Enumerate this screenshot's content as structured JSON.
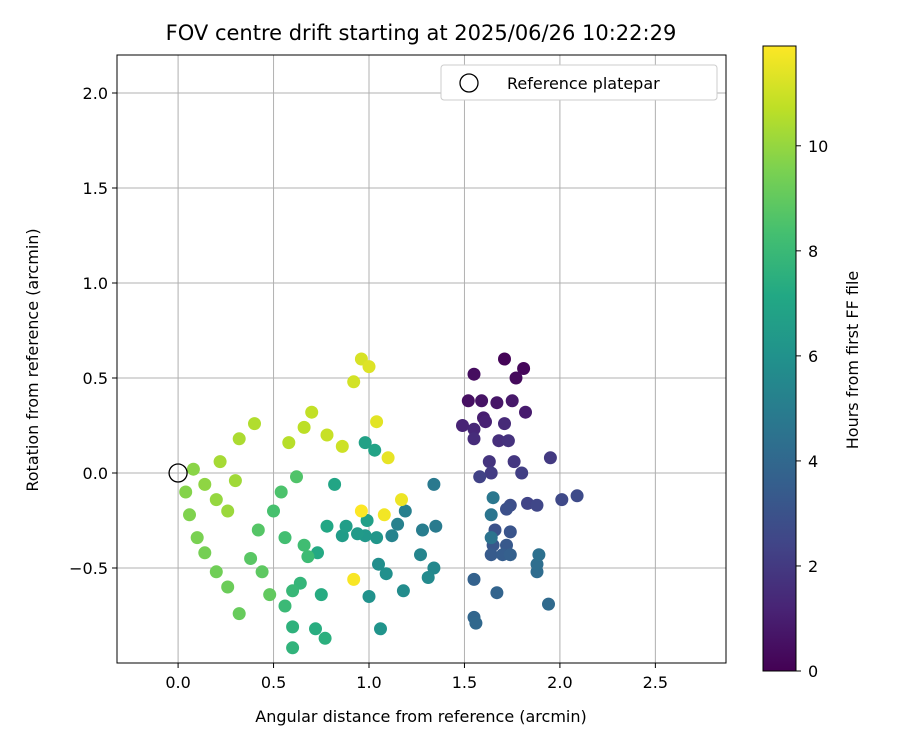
{
  "chart_data": {
    "type": "scatter",
    "title": "FOV centre drift starting at 2025/06/26 10:22:29",
    "xlabel": "Angular distance from reference (arcmin)",
    "ylabel": "Rotation from reference (arcmin)",
    "xlim": [
      -0.32,
      2.87
    ],
    "ylim": [
      -1.0,
      2.2
    ],
    "xticks": [
      0.0,
      0.5,
      1.0,
      1.5,
      2.0,
      2.5
    ],
    "xtick_labels": [
      "0.0",
      "0.5",
      "1.0",
      "1.5",
      "2.0",
      "2.5"
    ],
    "yticks": [
      -0.5,
      0.0,
      0.5,
      1.0,
      1.5,
      2.0
    ],
    "ytick_labels": [
      "−0.5",
      "0.0",
      "0.5",
      "1.0",
      "1.5",
      "2.0"
    ],
    "grid": true,
    "legend": {
      "position": "top-right",
      "entries": [
        "Reference platepar"
      ]
    },
    "reference_point": {
      "x": 0.0,
      "y": 0.0,
      "label": "Reference platepar"
    },
    "colorbar": {
      "label": "Hours from first FF file",
      "colormap": "viridis",
      "range": [
        0,
        11.9
      ],
      "ticks": [
        0,
        2,
        4,
        6,
        8,
        10
      ],
      "tick_labels": [
        "0",
        "2",
        "4",
        "6",
        "8",
        "10"
      ]
    },
    "points": [
      {
        "x": 1.71,
        "y": 0.6,
        "h": 0.1
      },
      {
        "x": 1.81,
        "y": 0.55,
        "h": 0.2
      },
      {
        "x": 1.77,
        "y": 0.5,
        "h": 0.3
      },
      {
        "x": 1.55,
        "y": 0.52,
        "h": 0.4
      },
      {
        "x": 1.52,
        "y": 0.38,
        "h": 0.5
      },
      {
        "x": 1.59,
        "y": 0.38,
        "h": 0.6
      },
      {
        "x": 1.67,
        "y": 0.37,
        "h": 0.7
      },
      {
        "x": 1.75,
        "y": 0.38,
        "h": 0.8
      },
      {
        "x": 1.82,
        "y": 0.32,
        "h": 0.9
      },
      {
        "x": 1.6,
        "y": 0.29,
        "h": 1.0
      },
      {
        "x": 1.61,
        "y": 0.27,
        "h": 1.1
      },
      {
        "x": 1.49,
        "y": 0.25,
        "h": 1.2
      },
      {
        "x": 1.55,
        "y": 0.23,
        "h": 1.3
      },
      {
        "x": 1.71,
        "y": 0.26,
        "h": 1.4
      },
      {
        "x": 1.55,
        "y": 0.18,
        "h": 1.5
      },
      {
        "x": 1.68,
        "y": 0.17,
        "h": 1.6
      },
      {
        "x": 1.73,
        "y": 0.17,
        "h": 1.7
      },
      {
        "x": 1.63,
        "y": 0.06,
        "h": 1.8
      },
      {
        "x": 1.76,
        "y": 0.06,
        "h": 1.9
      },
      {
        "x": 1.95,
        "y": 0.08,
        "h": 2.0
      },
      {
        "x": 1.64,
        "y": 0.0,
        "h": 2.1
      },
      {
        "x": 1.8,
        "y": 0.0,
        "h": 2.2
      },
      {
        "x": 1.58,
        "y": -0.02,
        "h": 2.3
      },
      {
        "x": 1.83,
        "y": -0.16,
        "h": 2.4
      },
      {
        "x": 1.88,
        "y": -0.17,
        "h": 2.5
      },
      {
        "x": 2.01,
        "y": -0.14,
        "h": 2.6
      },
      {
        "x": 2.09,
        "y": -0.12,
        "h": 2.7
      },
      {
        "x": 1.74,
        "y": -0.17,
        "h": 2.8
      },
      {
        "x": 1.72,
        "y": -0.19,
        "h": 2.9
      },
      {
        "x": 1.66,
        "y": -0.3,
        "h": 3.0
      },
      {
        "x": 1.74,
        "y": -0.31,
        "h": 3.1
      },
      {
        "x": 1.65,
        "y": -0.38,
        "h": 3.2
      },
      {
        "x": 1.72,
        "y": -0.38,
        "h": 3.3
      },
      {
        "x": 1.64,
        "y": -0.43,
        "h": 3.4
      },
      {
        "x": 1.7,
        "y": -0.43,
        "h": 3.5
      },
      {
        "x": 1.74,
        "y": -0.43,
        "h": 3.6
      },
      {
        "x": 1.55,
        "y": -0.56,
        "h": 3.7
      },
      {
        "x": 1.67,
        "y": -0.63,
        "h": 3.8
      },
      {
        "x": 1.55,
        "y": -0.76,
        "h": 3.9
      },
      {
        "x": 1.56,
        "y": -0.79,
        "h": 4.0
      },
      {
        "x": 1.94,
        "y": -0.69,
        "h": 4.1
      },
      {
        "x": 1.88,
        "y": -0.52,
        "h": 4.2
      },
      {
        "x": 1.88,
        "y": -0.48,
        "h": 4.3
      },
      {
        "x": 1.89,
        "y": -0.43,
        "h": 4.4
      },
      {
        "x": 1.64,
        "y": -0.34,
        "h": 4.5
      },
      {
        "x": 1.64,
        "y": -0.22,
        "h": 4.6
      },
      {
        "x": 1.65,
        "y": -0.13,
        "h": 4.7
      },
      {
        "x": 1.34,
        "y": -0.06,
        "h": 4.8
      },
      {
        "x": 1.35,
        "y": -0.28,
        "h": 4.9
      },
      {
        "x": 1.28,
        "y": -0.3,
        "h": 5.0
      },
      {
        "x": 1.19,
        "y": -0.2,
        "h": 5.1
      },
      {
        "x": 1.15,
        "y": -0.27,
        "h": 5.2
      },
      {
        "x": 1.12,
        "y": -0.33,
        "h": 5.3
      },
      {
        "x": 1.27,
        "y": -0.43,
        "h": 5.4
      },
      {
        "x": 1.34,
        "y": -0.5,
        "h": 5.5
      },
      {
        "x": 1.31,
        "y": -0.55,
        "h": 5.6
      },
      {
        "x": 1.18,
        "y": -0.62,
        "h": 5.7
      },
      {
        "x": 1.05,
        "y": -0.48,
        "h": 5.8
      },
      {
        "x": 1.09,
        "y": -0.53,
        "h": 5.9
      },
      {
        "x": 1.0,
        "y": -0.65,
        "h": 6.0
      },
      {
        "x": 1.06,
        "y": -0.82,
        "h": 6.1
      },
      {
        "x": 1.04,
        "y": -0.34,
        "h": 6.2
      },
      {
        "x": 0.98,
        "y": -0.33,
        "h": 6.3
      },
      {
        "x": 0.94,
        "y": -0.32,
        "h": 6.4
      },
      {
        "x": 0.86,
        "y": -0.33,
        "h": 6.5
      },
      {
        "x": 0.88,
        "y": -0.28,
        "h": 6.6
      },
      {
        "x": 0.99,
        "y": -0.25,
        "h": 6.7
      },
      {
        "x": 0.98,
        "y": 0.16,
        "h": 6.8
      },
      {
        "x": 1.03,
        "y": 0.12,
        "h": 6.9
      },
      {
        "x": 0.82,
        "y": -0.06,
        "h": 7.0
      },
      {
        "x": 0.78,
        "y": -0.28,
        "h": 7.1
      },
      {
        "x": 0.73,
        "y": -0.42,
        "h": 7.2
      },
      {
        "x": 0.75,
        "y": -0.64,
        "h": 7.3
      },
      {
        "x": 0.72,
        "y": -0.82,
        "h": 7.4
      },
      {
        "x": 0.77,
        "y": -0.87,
        "h": 7.5
      },
      {
        "x": 0.6,
        "y": -0.81,
        "h": 7.6
      },
      {
        "x": 0.6,
        "y": -0.92,
        "h": 7.7
      },
      {
        "x": 0.64,
        "y": -0.58,
        "h": 7.8
      },
      {
        "x": 0.6,
        "y": -0.62,
        "h": 7.9
      },
      {
        "x": 0.56,
        "y": -0.7,
        "h": 8.0
      },
      {
        "x": 0.68,
        "y": -0.44,
        "h": 8.1
      },
      {
        "x": 0.66,
        "y": -0.38,
        "h": 8.2
      },
      {
        "x": 0.56,
        "y": -0.34,
        "h": 8.3
      },
      {
        "x": 0.5,
        "y": -0.2,
        "h": 8.4
      },
      {
        "x": 0.54,
        "y": -0.1,
        "h": 8.5
      },
      {
        "x": 0.62,
        "y": -0.02,
        "h": 8.6
      },
      {
        "x": 0.42,
        "y": -0.3,
        "h": 8.7
      },
      {
        "x": 0.38,
        "y": -0.45,
        "h": 8.8
      },
      {
        "x": 0.44,
        "y": -0.52,
        "h": 8.9
      },
      {
        "x": 0.48,
        "y": -0.64,
        "h": 9.0
      },
      {
        "x": 0.32,
        "y": -0.74,
        "h": 9.1
      },
      {
        "x": 0.26,
        "y": -0.6,
        "h": 9.2
      },
      {
        "x": 0.2,
        "y": -0.52,
        "h": 9.3
      },
      {
        "x": 0.14,
        "y": -0.42,
        "h": 9.4
      },
      {
        "x": 0.1,
        "y": -0.34,
        "h": 9.5
      },
      {
        "x": 0.06,
        "y": -0.22,
        "h": 9.6
      },
      {
        "x": 0.04,
        "y": -0.1,
        "h": 9.7
      },
      {
        "x": 0.08,
        "y": 0.02,
        "h": 9.8
      },
      {
        "x": 0.14,
        "y": -0.06,
        "h": 9.9
      },
      {
        "x": 0.2,
        "y": -0.14,
        "h": 10.0
      },
      {
        "x": 0.26,
        "y": -0.2,
        "h": 10.1
      },
      {
        "x": 0.3,
        "y": -0.04,
        "h": 10.2
      },
      {
        "x": 0.22,
        "y": 0.06,
        "h": 10.3
      },
      {
        "x": 0.32,
        "y": 0.18,
        "h": 10.4
      },
      {
        "x": 0.4,
        "y": 0.26,
        "h": 10.5
      },
      {
        "x": 0.58,
        "y": 0.16,
        "h": 10.6
      },
      {
        "x": 0.66,
        "y": 0.24,
        "h": 10.7
      },
      {
        "x": 0.7,
        "y": 0.32,
        "h": 10.8
      },
      {
        "x": 0.78,
        "y": 0.2,
        "h": 10.9
      },
      {
        "x": 0.86,
        "y": 0.14,
        "h": 11.0
      },
      {
        "x": 0.92,
        "y": 0.48,
        "h": 11.1
      },
      {
        "x": 0.96,
        "y": 0.6,
        "h": 11.2
      },
      {
        "x": 1.0,
        "y": 0.56,
        "h": 11.3
      },
      {
        "x": 1.04,
        "y": 0.27,
        "h": 11.4
      },
      {
        "x": 1.1,
        "y": 0.08,
        "h": 11.5
      },
      {
        "x": 1.17,
        "y": -0.14,
        "h": 11.6
      },
      {
        "x": 1.08,
        "y": -0.22,
        "h": 11.7
      },
      {
        "x": 0.92,
        "y": -0.56,
        "h": 11.8
      },
      {
        "x": 0.96,
        "y": -0.2,
        "h": 11.9
      }
    ]
  }
}
